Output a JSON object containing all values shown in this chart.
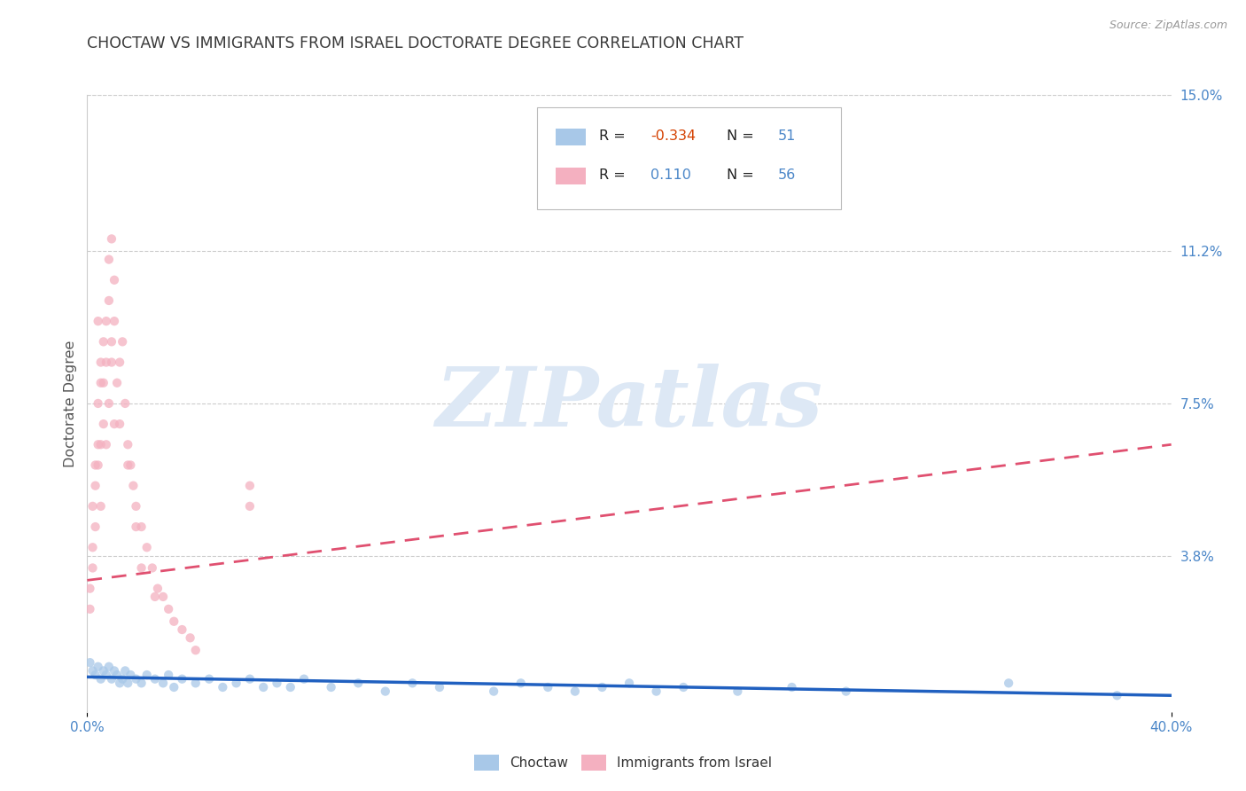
{
  "title": "CHOCTAW VS IMMIGRANTS FROM ISRAEL DOCTORATE DEGREE CORRELATION CHART",
  "source_text": "Source: ZipAtlas.com",
  "ylabel": "Doctorate Degree",
  "xlim": [
    0.0,
    0.4
  ],
  "ylim": [
    0.0,
    0.15
  ],
  "xtick_vals": [
    0.0,
    0.4
  ],
  "xtick_labels": [
    "0.0%",
    "40.0%"
  ],
  "ytick_right_vals": [
    0.038,
    0.075,
    0.112,
    0.15
  ],
  "ytick_right_labels": [
    "3.8%",
    "7.5%",
    "11.2%",
    "15.0%"
  ],
  "background_color": "#ffffff",
  "grid_color": "#cccccc",
  "title_color": "#3a3a3a",
  "title_fontsize": 12.5,
  "axis_label_color": "#555555",
  "tick_label_color": "#4a86c8",
  "watermark_text": "ZIPatlas",
  "watermark_color": "#dde8f5",
  "legend_R1": "-0.334",
  "legend_N1": "51",
  "legend_R2": "0.110",
  "legend_N2": "56",
  "legend_label1": "Choctaw",
  "legend_label2": "Immigrants from Israel",
  "scatter_blue_color": "#a8c8e8",
  "scatter_pink_color": "#f4b0c0",
  "line_blue_color": "#2060c0",
  "line_pink_color": "#e05070",
  "choctaw_x": [
    0.001,
    0.002,
    0.003,
    0.004,
    0.005,
    0.006,
    0.007,
    0.008,
    0.009,
    0.01,
    0.011,
    0.012,
    0.013,
    0.014,
    0.015,
    0.016,
    0.018,
    0.02,
    0.022,
    0.025,
    0.028,
    0.03,
    0.032,
    0.035,
    0.04,
    0.045,
    0.05,
    0.055,
    0.06,
    0.065,
    0.07,
    0.075,
    0.08,
    0.09,
    0.1,
    0.11,
    0.12,
    0.13,
    0.15,
    0.16,
    0.17,
    0.18,
    0.19,
    0.2,
    0.21,
    0.22,
    0.24,
    0.26,
    0.28,
    0.34,
    0.38
  ],
  "choctaw_y": [
    0.012,
    0.01,
    0.009,
    0.011,
    0.008,
    0.01,
    0.009,
    0.011,
    0.008,
    0.01,
    0.009,
    0.007,
    0.008,
    0.01,
    0.007,
    0.009,
    0.008,
    0.007,
    0.009,
    0.008,
    0.007,
    0.009,
    0.006,
    0.008,
    0.007,
    0.008,
    0.006,
    0.007,
    0.008,
    0.006,
    0.007,
    0.006,
    0.008,
    0.006,
    0.007,
    0.005,
    0.007,
    0.006,
    0.005,
    0.007,
    0.006,
    0.005,
    0.006,
    0.007,
    0.005,
    0.006,
    0.005,
    0.006,
    0.005,
    0.007,
    0.004
  ],
  "israel_x": [
    0.001,
    0.001,
    0.002,
    0.002,
    0.003,
    0.003,
    0.004,
    0.004,
    0.004,
    0.005,
    0.005,
    0.005,
    0.006,
    0.006,
    0.007,
    0.007,
    0.008,
    0.008,
    0.009,
    0.009,
    0.01,
    0.01,
    0.011,
    0.012,
    0.013,
    0.014,
    0.015,
    0.016,
    0.017,
    0.018,
    0.02,
    0.022,
    0.024,
    0.026,
    0.028,
    0.03,
    0.032,
    0.035,
    0.038,
    0.04,
    0.002,
    0.003,
    0.004,
    0.005,
    0.006,
    0.007,
    0.008,
    0.009,
    0.01,
    0.012,
    0.015,
    0.018,
    0.02,
    0.025,
    0.06,
    0.06
  ],
  "israel_y": [
    0.03,
    0.025,
    0.05,
    0.04,
    0.06,
    0.045,
    0.075,
    0.06,
    0.095,
    0.08,
    0.065,
    0.05,
    0.09,
    0.07,
    0.085,
    0.065,
    0.1,
    0.075,
    0.115,
    0.085,
    0.095,
    0.07,
    0.08,
    0.085,
    0.09,
    0.075,
    0.065,
    0.06,
    0.055,
    0.05,
    0.045,
    0.04,
    0.035,
    0.03,
    0.028,
    0.025,
    0.022,
    0.02,
    0.018,
    0.015,
    0.035,
    0.055,
    0.065,
    0.085,
    0.08,
    0.095,
    0.11,
    0.09,
    0.105,
    0.07,
    0.06,
    0.045,
    0.035,
    0.028,
    0.05,
    0.055
  ],
  "blue_trend_x0": 0.0,
  "blue_trend_y0": 0.0085,
  "blue_trend_x1": 0.4,
  "blue_trend_y1": 0.004,
  "pink_trend_x0": 0.0,
  "pink_trend_y0": 0.032,
  "pink_trend_x1": 0.4,
  "pink_trend_y1": 0.065
}
